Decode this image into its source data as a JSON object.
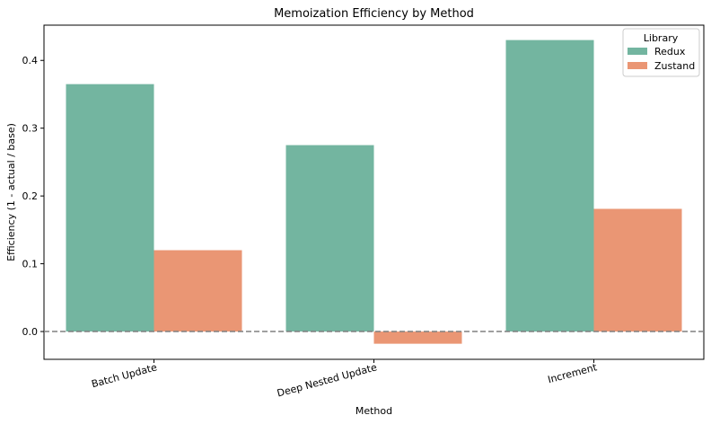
{
  "chart_data": {
    "type": "bar",
    "title": "Memoization Efficiency by Method",
    "xlabel": "Method",
    "ylabel": "Efficiency (1 - actual / base)",
    "categories": [
      "Batch Update",
      "Deep Nested Update",
      "Increment"
    ],
    "series": [
      {
        "name": "Redux",
        "color": "#73b5a0",
        "values": [
          0.365,
          0.275,
          0.43
        ]
      },
      {
        "name": "Zustand",
        "color": "#ea9674",
        "values": [
          0.12,
          -0.018,
          0.181
        ]
      }
    ],
    "ylim": [
      -0.041,
      0.452
    ],
    "yticks": [
      "0.0",
      "0.1",
      "0.2",
      "0.3",
      "0.4"
    ],
    "ytick_values": [
      0,
      0.1,
      0.2,
      0.3,
      0.4
    ],
    "reference_line": {
      "y": 0,
      "style": "dashed",
      "color": "#808080"
    },
    "legend": {
      "title": "Library",
      "placement": "top-right"
    },
    "grid": false
  }
}
